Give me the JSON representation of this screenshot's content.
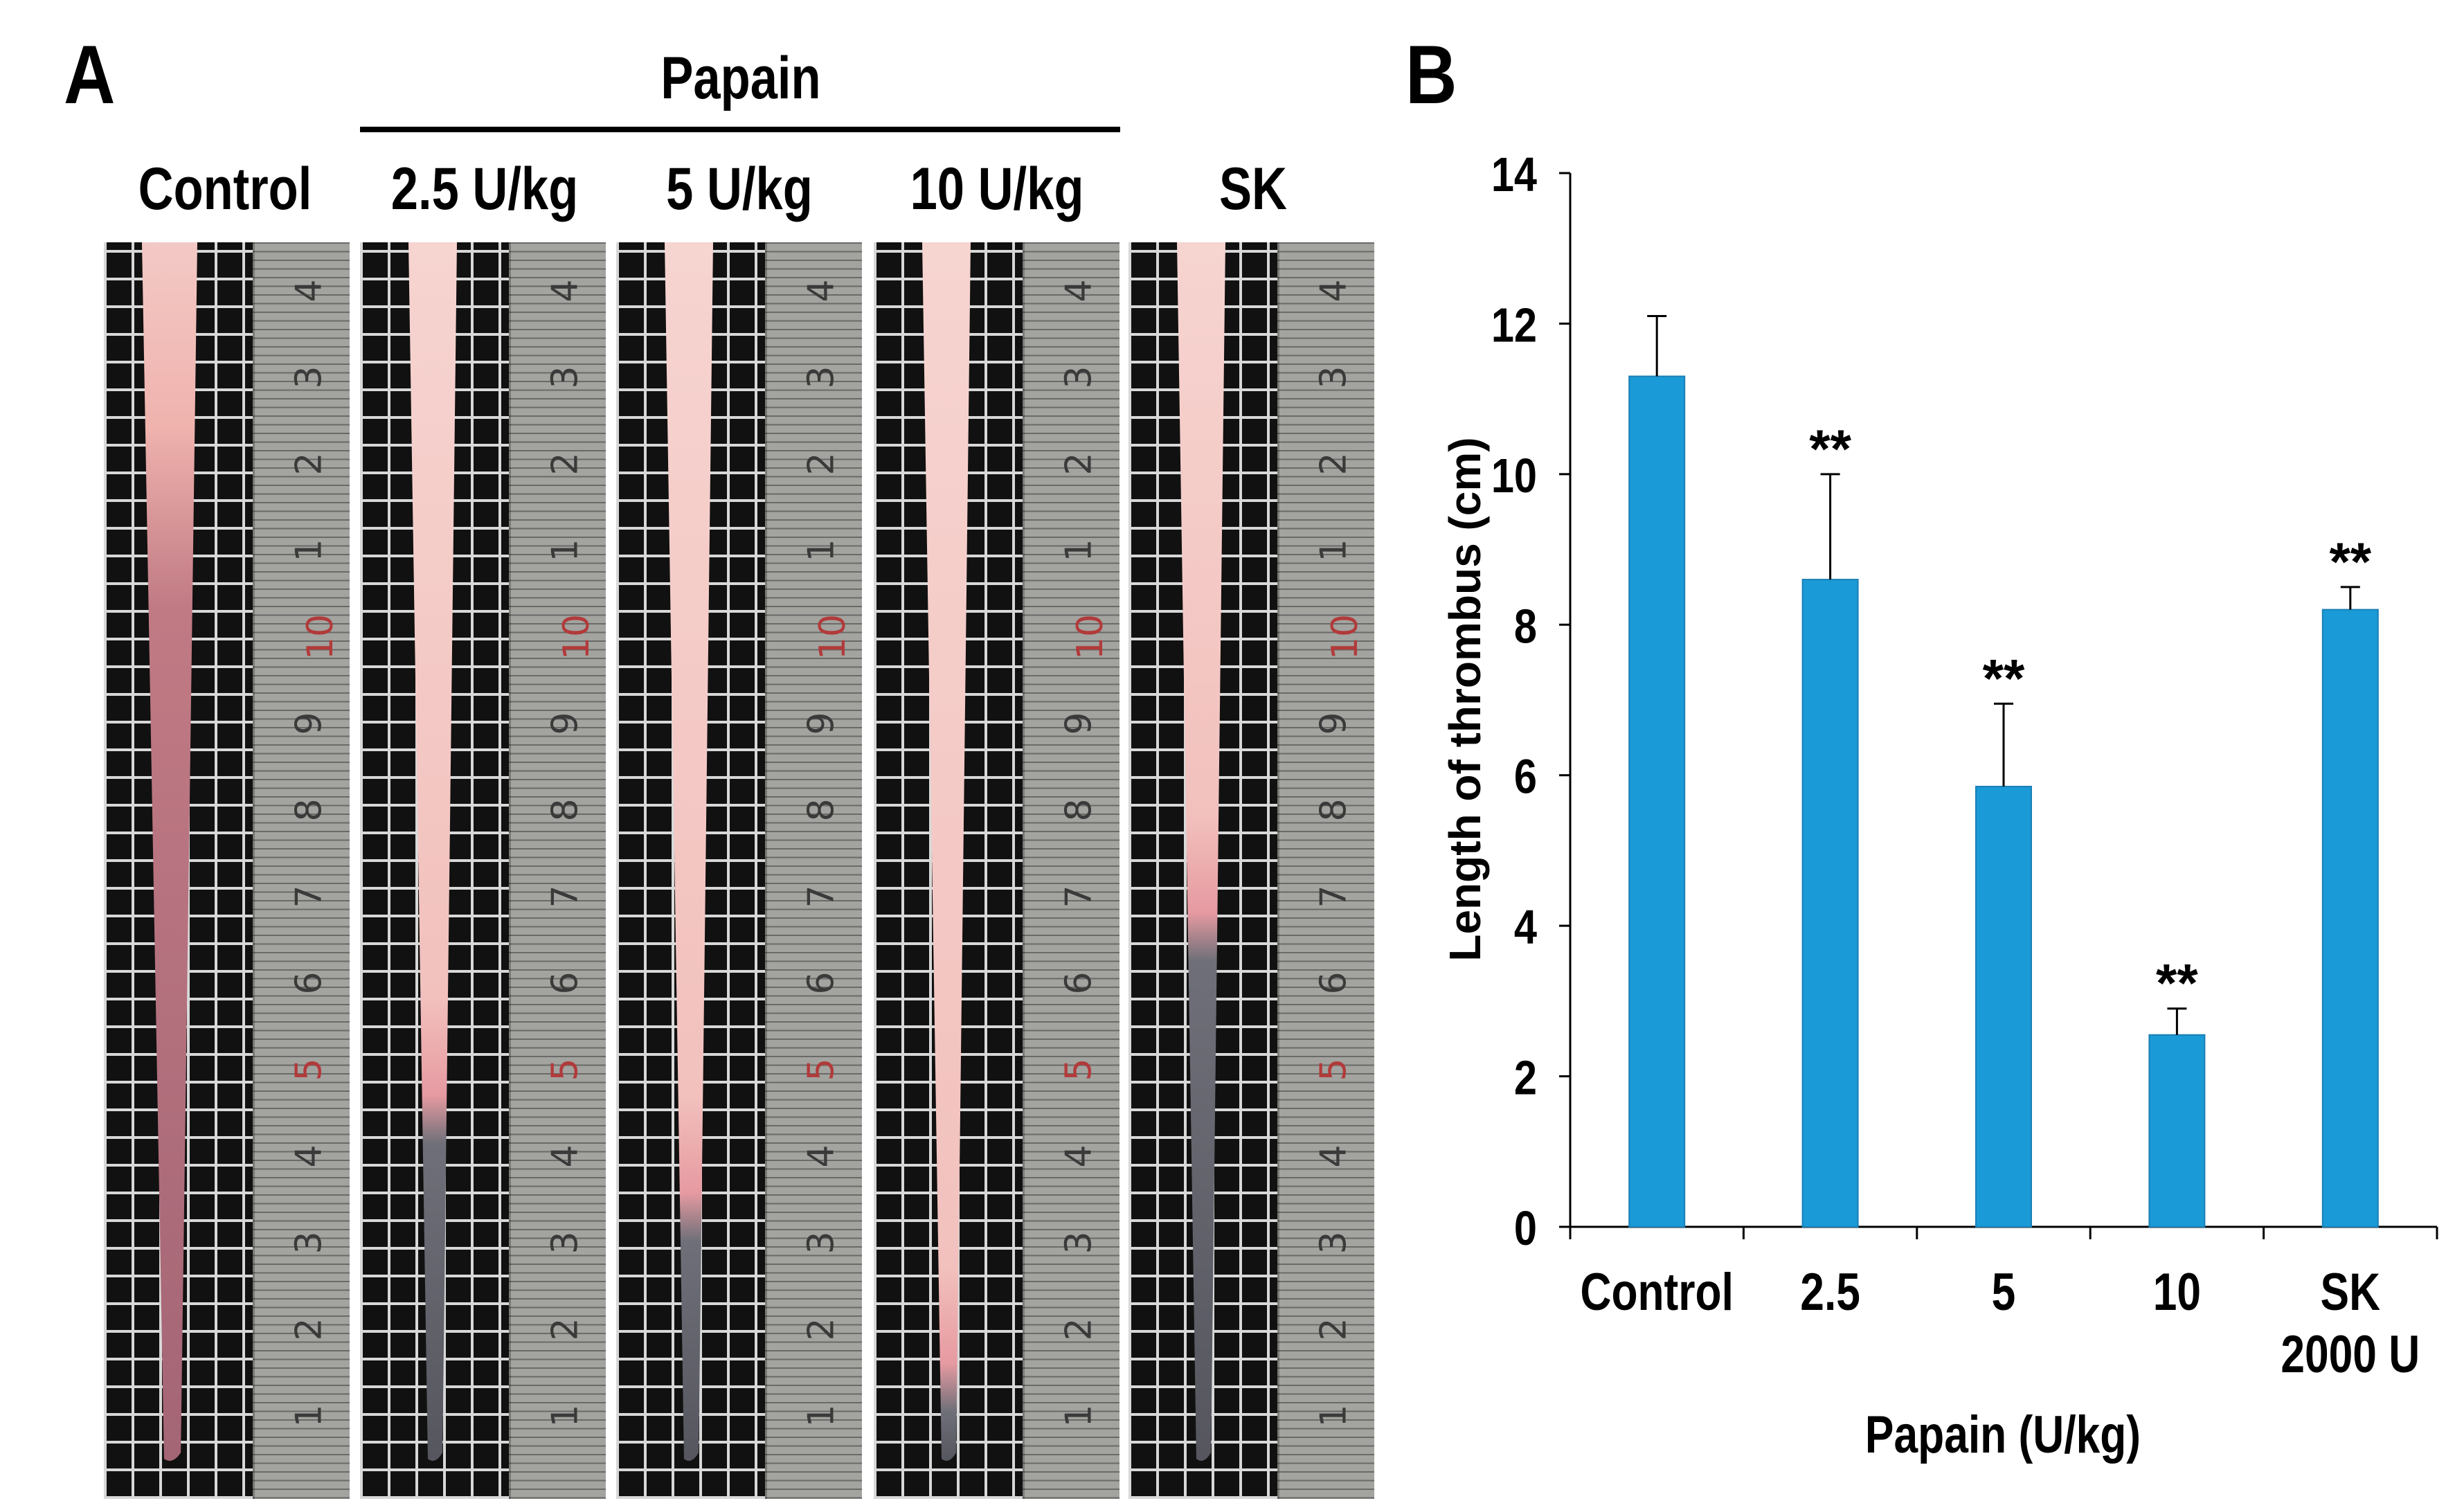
{
  "panel_a": {
    "letter": "A",
    "group_label": "Papain",
    "columns": [
      "Control",
      "2.5 U/kg",
      "5 U/kg",
      "10 U/kg",
      "SK"
    ],
    "ruler_numbers": [
      "4",
      "3",
      "2",
      "1",
      "10",
      "9",
      "8",
      "7",
      "6",
      "5",
      "4",
      "3",
      "2",
      "1"
    ]
  },
  "panel_b": {
    "letter": "B"
  },
  "chart_data": {
    "type": "bar",
    "title": "",
    "xlabel": "Papain (U/kg)",
    "ylabel": "Length of thrombus (cm)",
    "categories": [
      [
        "Control"
      ],
      [
        "2.5"
      ],
      [
        "5"
      ],
      [
        "10"
      ],
      [
        "SK",
        "2000 U"
      ]
    ],
    "values": [
      11.3,
      8.6,
      5.85,
      2.55,
      8.2
    ],
    "errors": [
      0.8,
      1.4,
      1.1,
      0.35,
      0.3
    ],
    "significance": [
      "",
      "**",
      "**",
      "**",
      "**"
    ],
    "ylim": [
      0,
      14
    ],
    "yticks": [
      0,
      2,
      4,
      6,
      8,
      10,
      12,
      14
    ],
    "bar_color": "#1a9ad6",
    "grid": false
  }
}
